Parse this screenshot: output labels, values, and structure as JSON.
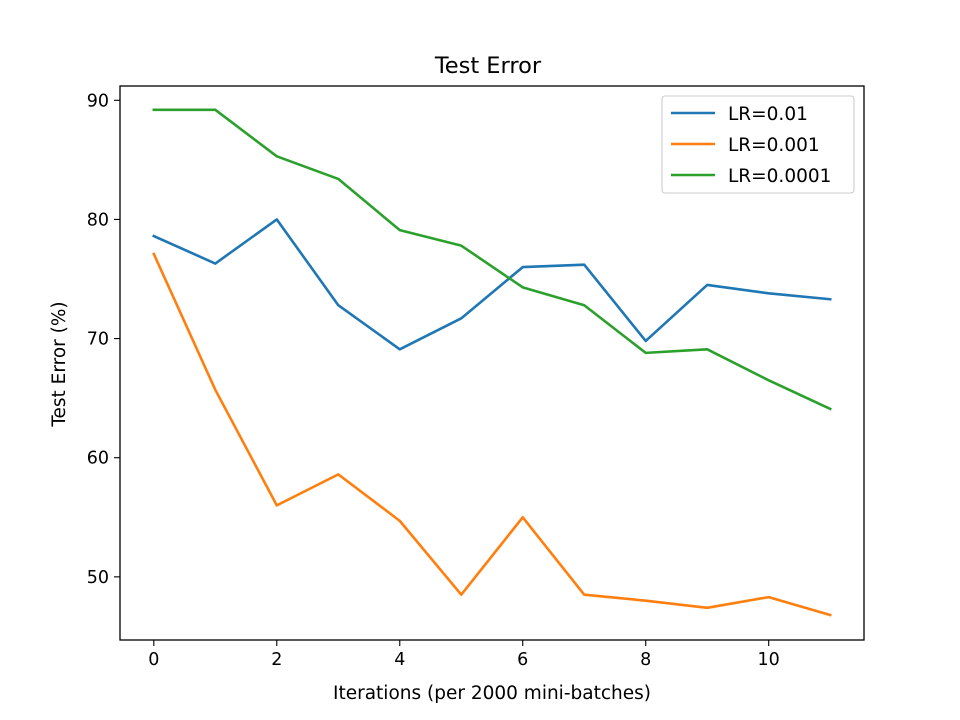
{
  "chart_data": {
    "type": "line",
    "title": "Test Error",
    "xlabel": "Iterations (per 2000 mini-batches)",
    "ylabel": "Test Error (%)",
    "xlim": [
      -0.55,
      11.55
    ],
    "ylim": [
      44.7,
      91.2
    ],
    "xticks": [
      0,
      2,
      4,
      6,
      8,
      10
    ],
    "yticks": [
      50,
      60,
      70,
      80,
      90
    ],
    "grid": false,
    "legend_position": "top-right",
    "x": [
      0,
      1,
      2,
      3,
      4,
      5,
      6,
      7,
      8,
      9,
      10,
      11
    ],
    "series": [
      {
        "name": "LR=0.01",
        "color": "#1f77b4",
        "values": [
          78.6,
          76.3,
          80.0,
          72.8,
          69.1,
          71.7,
          76.0,
          76.2,
          69.8,
          74.5,
          73.8,
          73.3
        ]
      },
      {
        "name": "LR=0.001",
        "color": "#ff7f0e",
        "values": [
          77.1,
          65.7,
          56.0,
          58.6,
          54.7,
          48.5,
          55.0,
          48.5,
          48.0,
          47.4,
          48.3,
          46.8
        ]
      },
      {
        "name": "LR=0.0001",
        "color": "#2ca02c",
        "values": [
          89.2,
          89.2,
          85.3,
          83.4,
          79.1,
          77.8,
          74.3,
          72.8,
          68.8,
          69.1,
          66.5,
          64.1
        ]
      }
    ]
  }
}
